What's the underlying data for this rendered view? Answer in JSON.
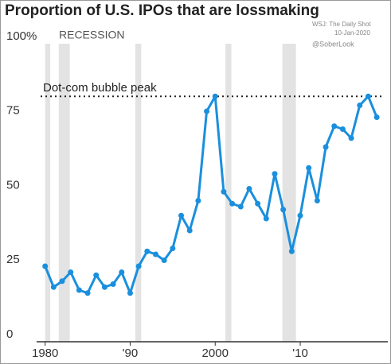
{
  "chart_data": {
    "type": "line",
    "title": "Proportion of U.S. IPOs that are lossmaking",
    "source": "WSJ: The Daily Shot",
    "date": "10-Jan-2020",
    "credit": "@SoberLook",
    "recession_label": "RECESSION",
    "reference_label": "Dot-com bubble peak",
    "reference_value": 81,
    "recessions": [
      [
        1980,
        1980.6
      ],
      [
        1981.6,
        1982.9
      ],
      [
        1990.6,
        1991.3
      ],
      [
        2001.2,
        2001.9
      ],
      [
        2007.9,
        2009.5
      ]
    ],
    "x": [
      1980,
      1981,
      1982,
      1983,
      1984,
      1985,
      1986,
      1987,
      1988,
      1989,
      1990,
      1991,
      1992,
      1993,
      1994,
      1995,
      1996,
      1997,
      1998,
      1999,
      2000,
      2001,
      2002,
      2003,
      2004,
      2005,
      2006,
      2007,
      2008,
      2009,
      2010,
      2011,
      2012,
      2013,
      2014,
      2015,
      2016,
      2017,
      2018,
      2019
    ],
    "series": [
      {
        "name": "Lossmaking IPOs",
        "color": "#1a8fdd",
        "values": [
          24,
          17,
          19,
          22,
          16,
          15,
          21,
          17,
          18,
          22,
          15,
          24,
          29,
          28,
          26,
          30,
          41,
          36,
          46,
          76,
          81,
          49,
          45,
          44,
          50,
          45,
          40,
          55,
          43,
          29,
          41,
          57,
          46,
          64,
          71,
          70,
          67,
          78,
          81,
          74
        ]
      }
    ],
    "xlim": [
      1979,
      2020.3
    ],
    "xticks": [
      1980,
      {
        "value": 1990,
        "label": "'90"
      },
      2000,
      {
        "value": 2010,
        "label": "'10"
      }
    ],
    "ylim": [
      0,
      100
    ],
    "yticks": [
      0,
      25,
      50,
      75,
      {
        "value": 100,
        "label": "100%"
      }
    ]
  }
}
